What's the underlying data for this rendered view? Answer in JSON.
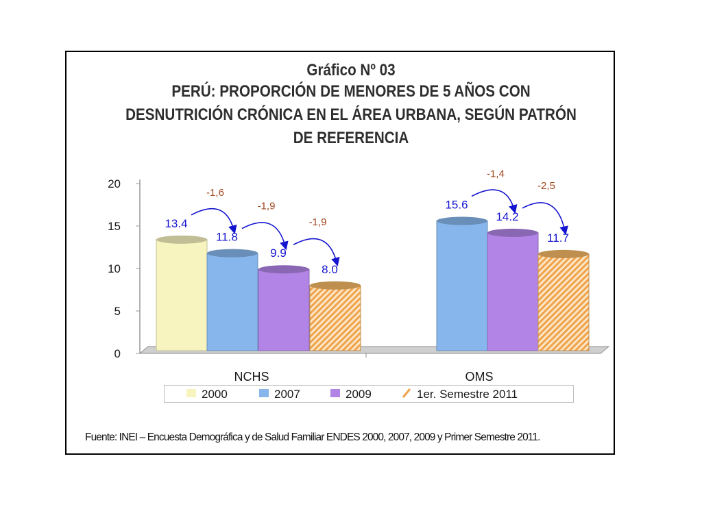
{
  "title": {
    "line1": "Gráfico Nº 03",
    "line2": "PERÚ: PROPORCIÓN DE MENORES DE 5 AÑOS CON",
    "line3": "DESNUTRICIÓN CRÓNICA EN EL ÁREA URBANA, SEGÚN PATRÓN",
    "line4": "DE REFERENCIA"
  },
  "source": "Fuente: INEI – Encuesta Demográfica y de Salud Familiar ENDES 2000, 2007, 2009  y Primer Semestre 2011.",
  "chart_data": {
    "type": "bar",
    "categories": [
      "NCHS",
      "OMS"
    ],
    "ylim": [
      0,
      20
    ],
    "yticks": [
      "0",
      "5",
      "10",
      "15",
      "20"
    ],
    "series": [
      {
        "name": "2000",
        "values": [
          13.4,
          null
        ],
        "color": "#f7f4c0",
        "labels": [
          "13.4",
          ""
        ]
      },
      {
        "name": "2007",
        "values": [
          11.8,
          15.6
        ],
        "color": "#86b6ec",
        "labels": [
          "11.8",
          "15.6"
        ]
      },
      {
        "name": "2009",
        "values": [
          9.9,
          14.2
        ],
        "color": "#b184e6",
        "labels": [
          "9.9",
          "14.2"
        ]
      },
      {
        "name": "1er. Semestre 2011",
        "values": [
          8.0,
          11.7
        ],
        "color": "#f4b764",
        "labels": [
          "8.0",
          "11.7"
        ]
      }
    ],
    "changes": [
      {
        "category": "NCHS",
        "from": "2000",
        "to": "2007",
        "label": "-1,6"
      },
      {
        "category": "NCHS",
        "from": "2007",
        "to": "2009",
        "label": "-1,9"
      },
      {
        "category": "NCHS",
        "from": "2009",
        "to": "1er. Semestre 2011",
        "label": "-1,9"
      },
      {
        "category": "OMS",
        "from": "2007",
        "to": "2009",
        "label": "-1,4"
      },
      {
        "category": "OMS",
        "from": "2009",
        "to": "1er. Semestre 2011",
        "label": "-2,5"
      }
    ],
    "legend_position": "bottom",
    "value_label_color": "#1414d0",
    "change_label_color": "#a0461e",
    "arrow_color": "#1414d0",
    "grid": false
  }
}
